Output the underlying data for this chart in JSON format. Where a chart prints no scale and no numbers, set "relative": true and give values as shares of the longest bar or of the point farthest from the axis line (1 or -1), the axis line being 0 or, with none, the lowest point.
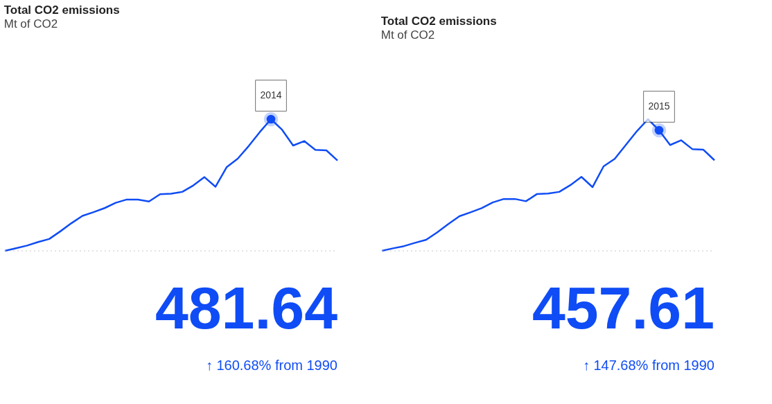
{
  "chart_data": [
    {
      "type": "line",
      "title": "Total CO2 emissions",
      "subtitle": "Mt of CO2",
      "relative": true,
      "categories": [
        null,
        null,
        null,
        null,
        null,
        null,
        null,
        null,
        null,
        null,
        null,
        null,
        null,
        null,
        null,
        null,
        null,
        null,
        null,
        null,
        null,
        null,
        null,
        null,
        null,
        null,
        null,
        null,
        null,
        null,
        null
      ],
      "series": [
        {
          "color": "#0f4cf5",
          "values": [
            0,
            0.02,
            0.04,
            0.067,
            0.09,
            0.148,
            0.21,
            0.266,
            0.294,
            0.325,
            0.365,
            0.39,
            0.39,
            0.375,
            0.43,
            0.434,
            0.448,
            0.497,
            0.56,
            0.487,
            0.635,
            0.7,
            0.797,
            0.903,
            1,
            0.92,
            0.8,
            0.834,
            0.767,
            0.763,
            0.686
          ]
        }
      ],
      "ref_lines": [
        {
          "axis": "y",
          "value": 0,
          "color": "#c8c8c8",
          "line_style": "dotted"
        }
      ],
      "annotations": [
        {
          "text": "2014",
          "y": 1
        },
        "481.64",
        "↑ 160.68% from 1990"
      ]
    },
    {
      "type": "line",
      "title": "Total CO2 emissions",
      "subtitle": "Mt of CO2",
      "relative": true,
      "categories": [
        null,
        null,
        null,
        null,
        null,
        null,
        null,
        null,
        null,
        null,
        null,
        null,
        null,
        null,
        null,
        null,
        null,
        null,
        null,
        null,
        null,
        null,
        null,
        null,
        null,
        null,
        null,
        null,
        null,
        null,
        null
      ],
      "series": [
        {
          "color": "#0f4cf5",
          "values": [
            0,
            0.019,
            0.036,
            0.061,
            0.084,
            0.141,
            0.204,
            0.263,
            0.293,
            0.324,
            0.368,
            0.394,
            0.394,
            0.377,
            0.432,
            0.436,
            0.448,
            0.499,
            0.562,
            0.484,
            0.642,
            0.699,
            0.804,
            0.909,
            1,
            0.916,
            0.804,
            0.84,
            0.773,
            0.768,
            0.688
          ]
        }
      ],
      "ref_lines": [
        {
          "axis": "y",
          "value": 0,
          "color": "#c8c8c8",
          "line_style": "dotted"
        }
      ],
      "annotations": [
        {
          "text": "2015",
          "y": 0.916
        },
        "457.61",
        "↑ 147.68% from 1990"
      ]
    }
  ]
}
